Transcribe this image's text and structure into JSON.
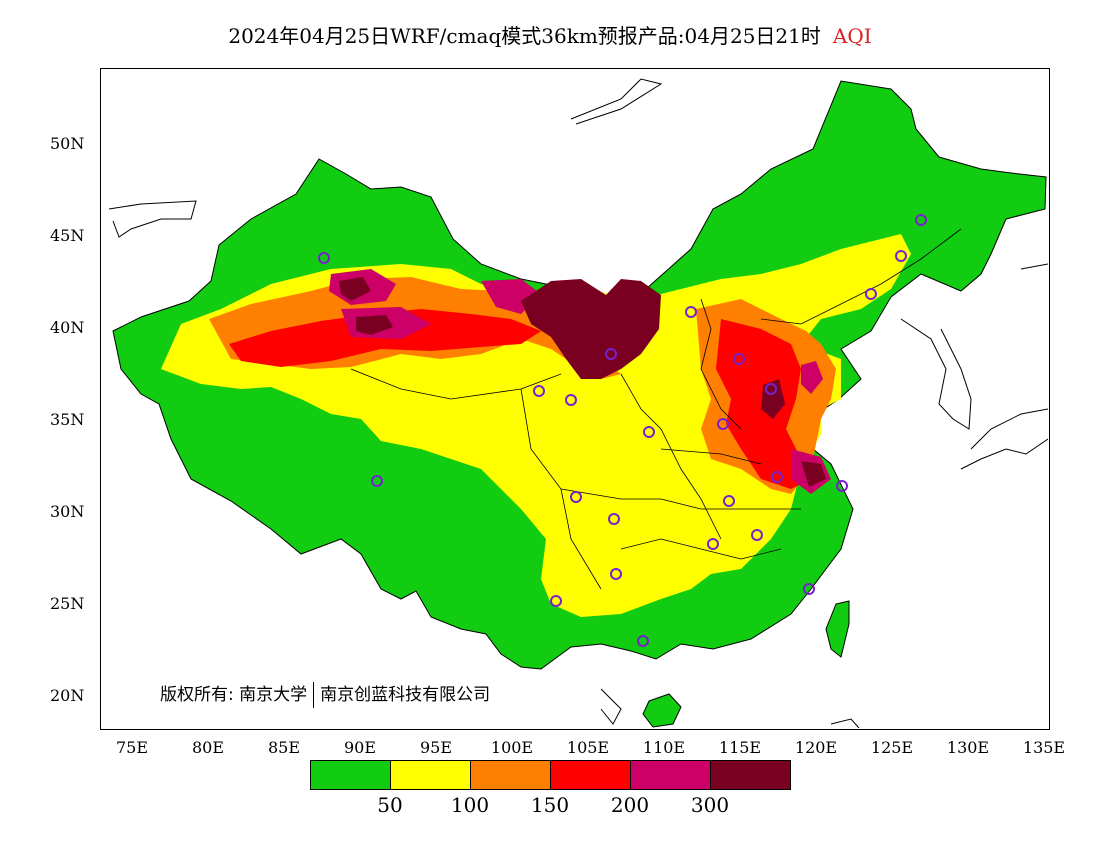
{
  "title": {
    "text": "2024年04月25日WRF/cmaq模式36km预报产品:04月25日21时",
    "label": "AQI"
  },
  "axes": {
    "lat_labels": [
      "50N",
      "45N",
      "40N",
      "35N",
      "30N",
      "25N",
      "20N"
    ],
    "lon_labels": [
      "75E",
      "80E",
      "85E",
      "90E",
      "95E",
      "100E",
      "105E",
      "110E",
      "115E",
      "120E",
      "125E",
      "130E",
      "135E"
    ]
  },
  "copyright": {
    "prefix": "版权所有:",
    "org1": "南京大学",
    "org2": "南京创蓝科技有限公司"
  },
  "legend": {
    "colors": [
      "#11cc11",
      "#ffff00",
      "#ff7f00",
      "#ff0000",
      "#cc0066",
      "#7a0022"
    ],
    "labels": [
      "50",
      "100",
      "150",
      "200",
      "300"
    ]
  },
  "colors": {
    "green": "#11cc11",
    "yellow": "#ffff00",
    "orange": "#ff7f00",
    "red": "#ff0000",
    "magenta": "#cc0066",
    "maroon": "#7a0022",
    "site_ring": "#7722cc"
  }
}
